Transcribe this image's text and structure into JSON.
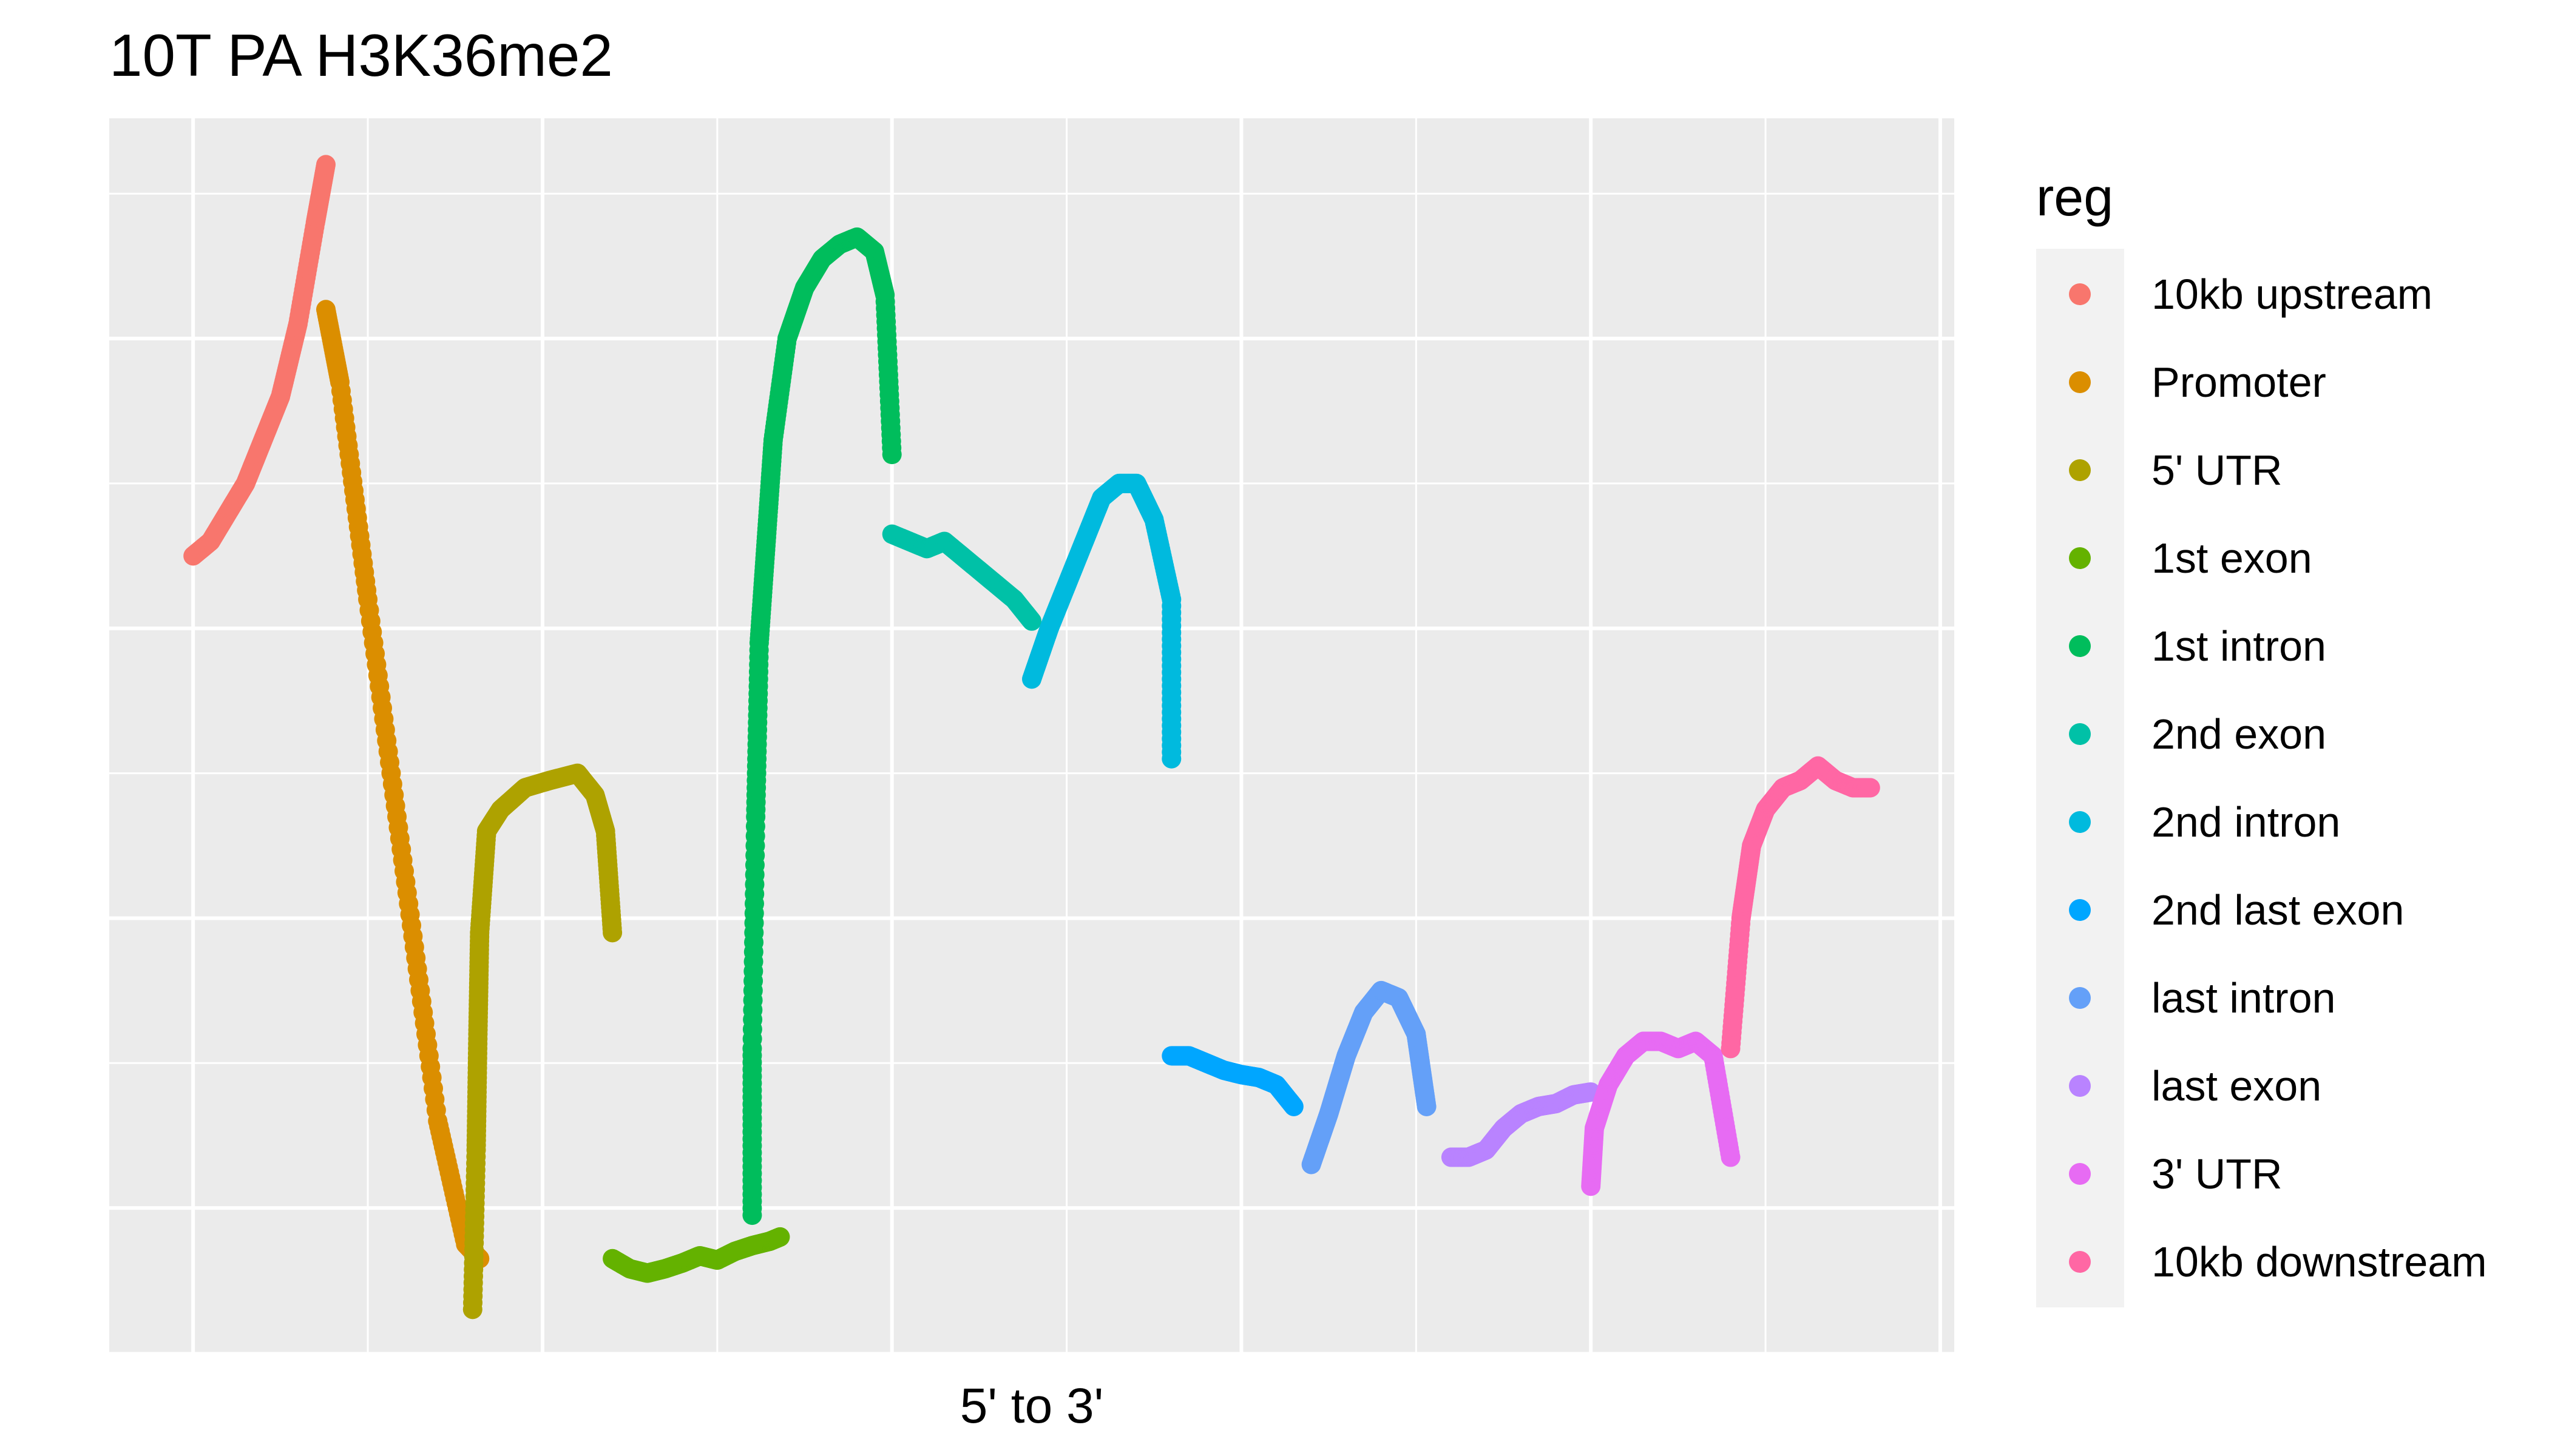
{
  "chart_data": {
    "type": "scatter",
    "title": "10T PA H3K36me2",
    "xlabel": "5' to 3'",
    "ylabel": "",
    "xlim": [
      -2.4,
      50.4
    ],
    "ylim": [
      0.0,
      8.52
    ],
    "grid": true,
    "tick_labels_shown": false,
    "legend": {
      "title": "reg",
      "position": "right"
    },
    "series": [
      {
        "name": "10kb upstream",
        "color": "#F8766D",
        "x": [
          0.0,
          0.5,
          1.0,
          1.5,
          2.0,
          2.5,
          3.0,
          3.5,
          3.8
        ],
        "y": [
          5.5,
          5.6,
          5.8,
          6.0,
          6.3,
          6.6,
          7.1,
          7.8,
          8.2
        ]
      },
      {
        "name": "Promoter",
        "color": "#DB8E00",
        "x": [
          3.8,
          4.2,
          5.0,
          6.0,
          7.0,
          7.8,
          8.2
        ],
        "y": [
          7.2,
          6.7,
          5.2,
          3.4,
          1.6,
          0.75,
          0.65
        ]
      },
      {
        "name": "5' UTR",
        "color": "#AEA200",
        "x": [
          8.0,
          8.1,
          8.15,
          8.2,
          8.4,
          8.8,
          9.5,
          10.2,
          11.0,
          11.5,
          11.8,
          12.0
        ],
        "y": [
          0.3,
          1.4,
          2.2,
          2.9,
          3.6,
          3.75,
          3.9,
          3.95,
          4.0,
          3.85,
          3.6,
          2.9
        ]
      },
      {
        "name": "1st exon",
        "color": "#64B200",
        "x": [
          12.0,
          12.5,
          13.0,
          13.5,
          14.0,
          14.5,
          15.0,
          15.5,
          16.0,
          16.5,
          16.8
        ],
        "y": [
          0.65,
          0.58,
          0.55,
          0.58,
          0.62,
          0.67,
          0.64,
          0.7,
          0.74,
          0.77,
          0.8
        ]
      },
      {
        "name": "1st intron",
        "color": "#00BD5C",
        "x": [
          16.0,
          16.0,
          16.1,
          16.2,
          16.4,
          16.6,
          17.0,
          17.5,
          18.0,
          18.5,
          19.0,
          19.5,
          19.8,
          20.0
        ],
        "y": [
          0.95,
          2.1,
          3.7,
          4.9,
          5.6,
          6.3,
          7.0,
          7.35,
          7.55,
          7.65,
          7.7,
          7.6,
          7.3,
          6.2
        ]
      },
      {
        "name": "2nd exon",
        "color": "#00C1A7",
        "x": [
          20.0,
          20.5,
          21.0,
          21.5,
          22.0,
          22.5,
          23.0,
          23.5,
          24.0
        ],
        "y": [
          5.65,
          5.6,
          5.55,
          5.6,
          5.5,
          5.4,
          5.3,
          5.2,
          5.05
        ]
      },
      {
        "name": "2nd intron",
        "color": "#00BADE",
        "x": [
          24.0,
          24.5,
          25.0,
          25.5,
          26.0,
          26.5,
          27.0,
          27.5,
          28.0,
          28.0
        ],
        "y": [
          4.65,
          5.0,
          5.3,
          5.6,
          5.9,
          6.0,
          6.0,
          5.75,
          5.2,
          4.1
        ]
      },
      {
        "name": "2nd last exon",
        "color": "#00A6FF",
        "x": [
          28.0,
          28.5,
          29.0,
          29.5,
          30.0,
          30.5,
          31.0,
          31.5
        ],
        "y": [
          2.05,
          2.05,
          2.0,
          1.95,
          1.92,
          1.9,
          1.85,
          1.7
        ]
      },
      {
        "name": "last intron",
        "color": "#64A0F8",
        "x": [
          32.0,
          32.5,
          33.0,
          33.5,
          34.0,
          34.5,
          35.0,
          35.3
        ],
        "y": [
          1.3,
          1.65,
          2.05,
          2.35,
          2.5,
          2.45,
          2.2,
          1.7
        ]
      },
      {
        "name": "last exon",
        "color": "#B983FF",
        "x": [
          36.0,
          36.5,
          37.0,
          37.5,
          38.0,
          38.5,
          39.0,
          39.5,
          40.0
        ],
        "y": [
          1.35,
          1.35,
          1.4,
          1.55,
          1.65,
          1.7,
          1.72,
          1.78,
          1.8
        ]
      },
      {
        "name": "3' UTR",
        "color": "#E76BF3",
        "x": [
          40.0,
          40.1,
          40.5,
          41.0,
          41.5,
          42.0,
          42.5,
          43.0,
          43.5,
          44.0
        ],
        "y": [
          1.15,
          1.55,
          1.85,
          2.05,
          2.15,
          2.15,
          2.1,
          2.15,
          2.05,
          1.35
        ]
      },
      {
        "name": "10kb downstream",
        "color": "#FF67A4",
        "x": [
          44.0,
          44.3,
          44.6,
          45.0,
          45.5,
          46.0,
          46.5,
          47.0,
          47.5,
          48.0
        ],
        "y": [
          2.1,
          3.0,
          3.5,
          3.75,
          3.9,
          3.95,
          4.05,
          3.95,
          3.9,
          3.9
        ]
      }
    ]
  }
}
